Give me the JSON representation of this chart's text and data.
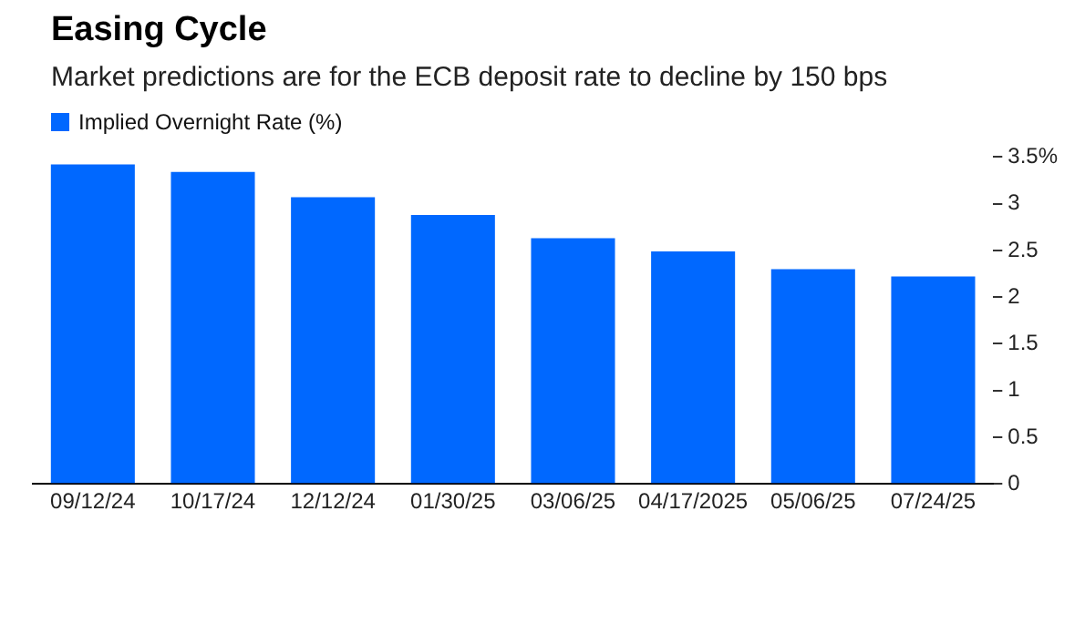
{
  "chart_data": {
    "type": "bar",
    "title": "Easing Cycle",
    "subtitle": "Market predictions are for the ECB deposit rate to decline by 150 bps",
    "categories": [
      "09/12/24",
      "10/17/24",
      "12/12/24",
      "01/30/25",
      "03/06/25",
      "04/17/2025",
      "05/06/25",
      "07/24/25"
    ],
    "series": [
      {
        "name": "Implied Overnight Rate (%)",
        "color": "#0068ff",
        "values": [
          3.42,
          3.34,
          3.07,
          2.88,
          2.63,
          2.49,
          2.3,
          2.22
        ]
      }
    ],
    "ylim": [
      0,
      3.5
    ],
    "yticks": [
      0,
      0.5,
      1,
      1.5,
      2,
      2.5,
      3,
      {
        "value": 3.5,
        "label": "3.5%"
      }
    ],
    "grid": false,
    "legend": "top left"
  }
}
